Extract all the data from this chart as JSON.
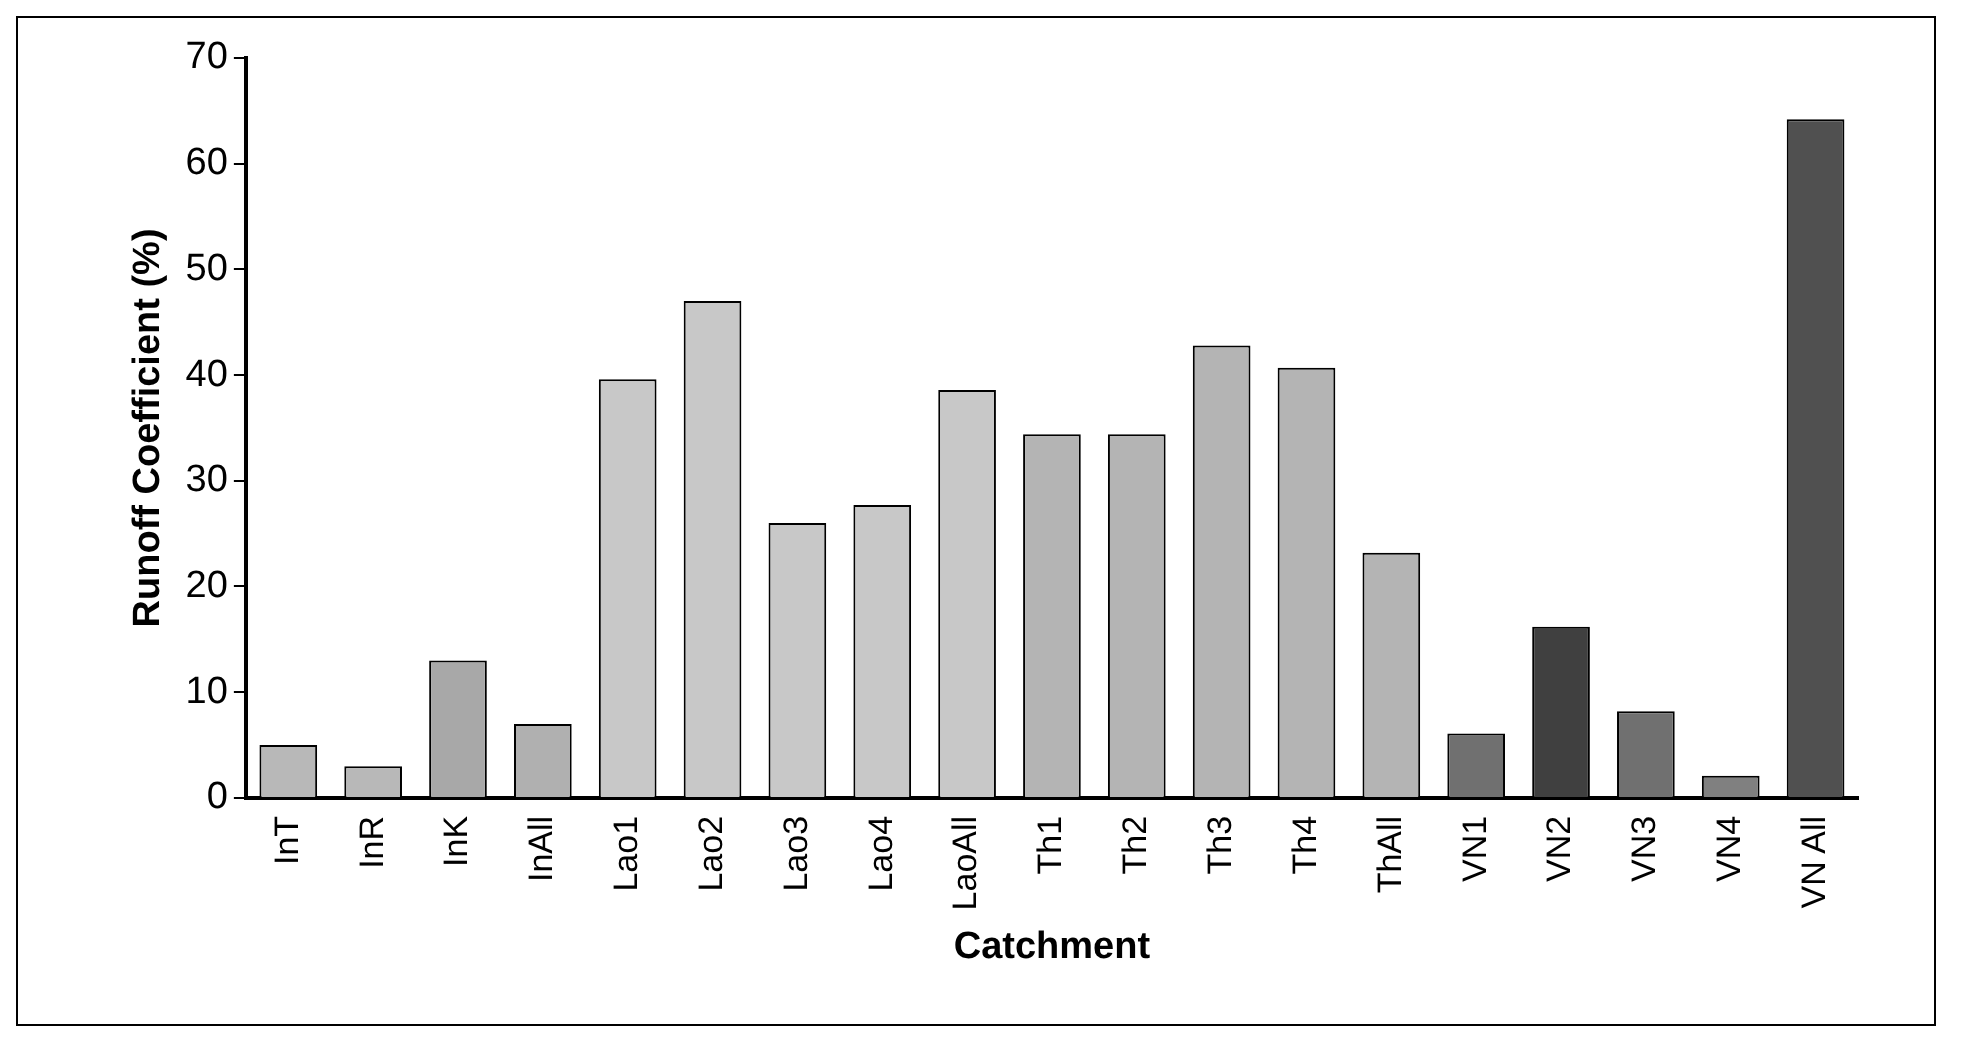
{
  "chart_data": {
    "type": "bar",
    "xlabel": "Catchment",
    "ylabel": "Runoff Coefficient (%)",
    "categories": [
      "InT",
      "InR",
      "InK",
      "InAll",
      "Lao1",
      "Lao2",
      "Lao3",
      "Lao4",
      "LaoAll",
      "Th1",
      "Th2",
      "Th3",
      "Th4",
      "ThAll",
      "VN1",
      "VN2",
      "VN3",
      "VN4",
      "VN All"
    ],
    "values": [
      5,
      3,
      13,
      7,
      39.6,
      47,
      26,
      27.7,
      38.6,
      34.4,
      34.4,
      42.8,
      40.7,
      23.2,
      6.1,
      16.2,
      8.2,
      2.1,
      64.2
    ],
    "colors": [
      "#b8b8b8",
      "#b8b8b8",
      "#a8a8a8",
      "#b0b0b0",
      "#c8c8c8",
      "#c8c8c8",
      "#c8c8c8",
      "#c8c8c8",
      "#c8c8c8",
      "#b4b4b4",
      "#b4b4b4",
      "#b4b4b4",
      "#b4b4b4",
      "#b4b4b4",
      "#707070",
      "#404040",
      "#707070",
      "#808080",
      "#505050"
    ],
    "ylim": [
      0,
      70
    ],
    "yticks": [
      0,
      10,
      20,
      30,
      40,
      50,
      60,
      70
    ],
    "grid": false,
    "legend": false
  }
}
